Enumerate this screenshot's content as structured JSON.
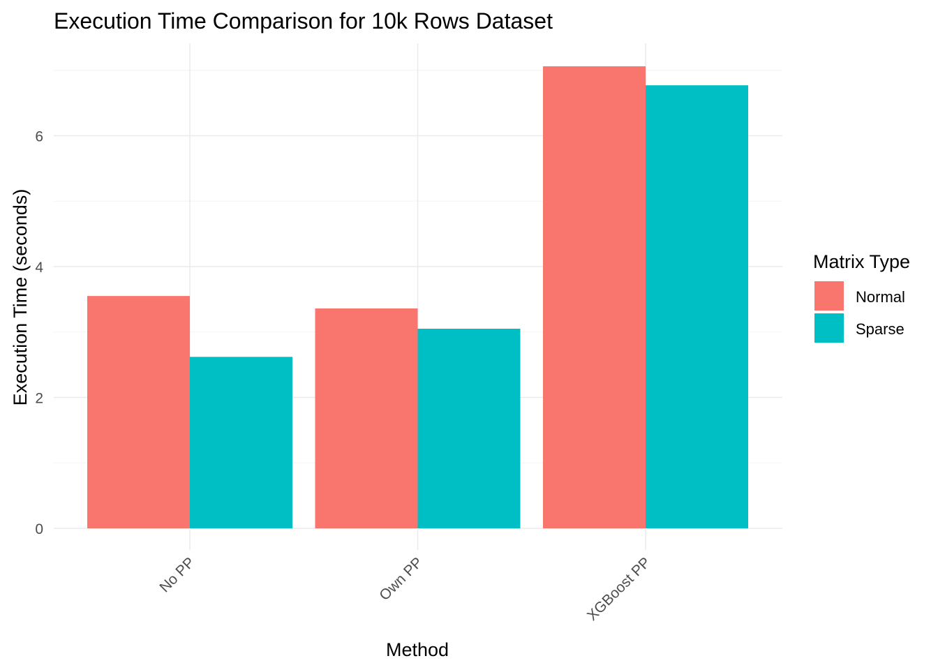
{
  "chart_data": {
    "type": "bar",
    "title": "Execution Time Comparison for 10k Rows Dataset",
    "xlabel": "Method",
    "ylabel": "Execution Time (seconds)",
    "categories": [
      "No PP",
      "Own PP",
      "XGBoost PP"
    ],
    "series": [
      {
        "name": "Normal",
        "values": [
          3.55,
          3.36,
          7.06
        ],
        "color": "#F8766D"
      },
      {
        "name": "Sparse",
        "values": [
          2.62,
          3.05,
          6.77
        ],
        "color": "#00BFC4"
      }
    ],
    "ylim": [
      0,
      7.06
    ],
    "yticks": [
      0,
      2,
      4,
      6
    ],
    "grid": true,
    "legend": {
      "title": "Matrix Type",
      "position": "right"
    }
  }
}
